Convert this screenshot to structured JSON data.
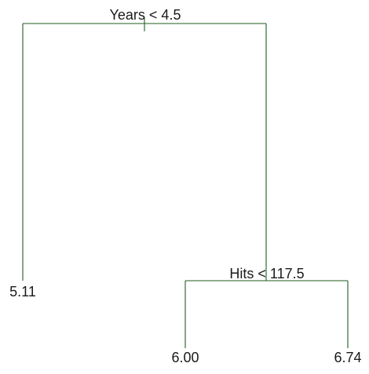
{
  "tree": {
    "root_split": "Years < 4.5",
    "inner_split": "Hits < 117.5",
    "leaves": {
      "left": "5.11",
      "middle": "6.00",
      "right": "6.74"
    },
    "colors": {
      "branch": "#1f5e1f",
      "text": "#1a1a1a"
    }
  }
}
